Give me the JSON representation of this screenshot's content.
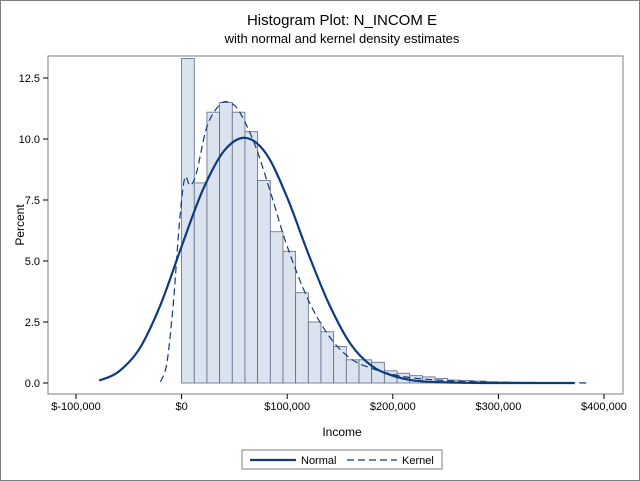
{
  "chart_data": {
    "type": "histogram",
    "title": "Histogram Plot: N_INCOM E",
    "subtitle": "with normal and kernel density estimates",
    "xlabel": "Income",
    "ylabel": "Percent",
    "xlim": [
      -100000,
      400000
    ],
    "ylim": [
      0,
      13.8
    ],
    "x_ticks": [
      {
        "value": -100000,
        "label": "$-100,000"
      },
      {
        "value": 0,
        "label": "$0"
      },
      {
        "value": 100000,
        "label": "$100,000"
      },
      {
        "value": 200000,
        "label": "$200,000"
      },
      {
        "value": 300000,
        "label": "$300,000"
      },
      {
        "value": 400000,
        "label": "$400,000"
      }
    ],
    "y_ticks": [
      {
        "value": 0,
        "label": "0.0"
      },
      {
        "value": 2.5,
        "label": "2.5"
      },
      {
        "value": 5,
        "label": "5.0"
      },
      {
        "value": 7.5,
        "label": "7.5"
      },
      {
        "value": 10,
        "label": "10.0"
      },
      {
        "value": 12.5,
        "label": "12.5"
      }
    ],
    "bin_width": 12000,
    "bins": [
      {
        "start": 0,
        "value": 13.3
      },
      {
        "start": 12000,
        "value": 8.2
      },
      {
        "start": 24000,
        "value": 11.1
      },
      {
        "start": 36000,
        "value": 11.5
      },
      {
        "start": 48000,
        "value": 11.1
      },
      {
        "start": 60000,
        "value": 10.3
      },
      {
        "start": 72000,
        "value": 8.3
      },
      {
        "start": 84000,
        "value": 6.2
      },
      {
        "start": 96000,
        "value": 5.4
      },
      {
        "start": 108000,
        "value": 3.7
      },
      {
        "start": 120000,
        "value": 2.5
      },
      {
        "start": 132000,
        "value": 2.1
      },
      {
        "start": 144000,
        "value": 1.5
      },
      {
        "start": 156000,
        "value": 0.95
      },
      {
        "start": 168000,
        "value": 0.95
      },
      {
        "start": 180000,
        "value": 0.85
      },
      {
        "start": 192000,
        "value": 0.5
      },
      {
        "start": 204000,
        "value": 0.4
      },
      {
        "start": 216000,
        "value": 0.3
      },
      {
        "start": 228000,
        "value": 0.25
      },
      {
        "start": 240000,
        "value": 0.18
      },
      {
        "start": 252000,
        "value": 0.12
      },
      {
        "start": 264000,
        "value": 0.1
      },
      {
        "start": 276000,
        "value": 0.08
      },
      {
        "start": 288000,
        "value": 0.05
      },
      {
        "start": 300000,
        "value": 0.04
      },
      {
        "start": 312000,
        "value": 0.03
      },
      {
        "start": 324000,
        "value": 0.03
      },
      {
        "start": 336000,
        "value": 0.02
      },
      {
        "start": 348000,
        "value": 0.02
      },
      {
        "start": 360000,
        "value": 0.01
      }
    ],
    "series": [
      {
        "name": "Normal",
        "style": "solid",
        "points": [
          [
            -78000,
            0.1
          ],
          [
            -60000,
            0.45
          ],
          [
            -40000,
            1.4
          ],
          [
            -20000,
            3.2
          ],
          [
            0,
            5.6
          ],
          [
            20000,
            7.9
          ],
          [
            40000,
            9.5
          ],
          [
            60000,
            10.05
          ],
          [
            80000,
            9.4
          ],
          [
            100000,
            7.6
          ],
          [
            120000,
            5.3
          ],
          [
            140000,
            3.2
          ],
          [
            160000,
            1.6
          ],
          [
            180000,
            0.7
          ],
          [
            200000,
            0.3
          ],
          [
            220000,
            0.1
          ],
          [
            240000,
            0.04
          ],
          [
            270000,
            0.01
          ],
          [
            300000,
            0.0
          ],
          [
            372000,
            0.0
          ]
        ]
      },
      {
        "name": "Kernel",
        "style": "dashed",
        "points": [
          [
            -20000,
            0.05
          ],
          [
            -14000,
            0.8
          ],
          [
            -8000,
            3.2
          ],
          [
            -2000,
            6.6
          ],
          [
            3000,
            8.4
          ],
          [
            8000,
            8.1
          ],
          [
            14000,
            8.6
          ],
          [
            24000,
            10.5
          ],
          [
            36000,
            11.4
          ],
          [
            45000,
            11.5
          ],
          [
            55000,
            11.1
          ],
          [
            70000,
            9.7
          ],
          [
            85000,
            7.7
          ],
          [
            100000,
            5.6
          ],
          [
            120000,
            3.4
          ],
          [
            140000,
            1.9
          ],
          [
            160000,
            1.0
          ],
          [
            180000,
            0.6
          ],
          [
            200000,
            0.35
          ],
          [
            220000,
            0.2
          ],
          [
            250000,
            0.1
          ],
          [
            280000,
            0.05
          ],
          [
            320000,
            0.02
          ],
          [
            360000,
            0.01
          ],
          [
            386000,
            0.0
          ]
        ]
      }
    ],
    "colors": {
      "bar_fill": "#dbe3ef",
      "bar_stroke": "#5b6b82",
      "curve": "#0f3a7d",
      "axis": "#7f7f7f"
    },
    "legend_position": "bottom-center"
  }
}
